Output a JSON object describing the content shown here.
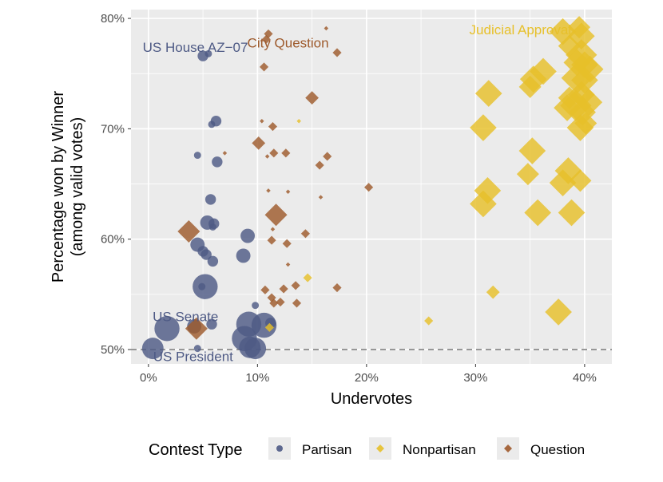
{
  "chart_data": {
    "type": "scatter",
    "xlabel": "Undervotes",
    "ylabel": [
      "Percentage won by Winner",
      "(among valid votes)"
    ],
    "xlim": [
      -0.016,
      0.425
    ],
    "ylim": [
      0.487,
      0.808
    ],
    "x_ticks": [
      0,
      0.1,
      0.2,
      0.3,
      0.4
    ],
    "x_tick_labels": [
      "0%",
      "10%",
      "20%",
      "30%",
      "40%"
    ],
    "y_ticks": [
      0.5,
      0.6,
      0.7,
      0.8
    ],
    "y_tick_labels": [
      "50%",
      "60%",
      "70%",
      "80%"
    ],
    "reference_line": {
      "y": 0.5,
      "style": "dashed"
    },
    "grid": true,
    "legend": {
      "title": "Contest Type",
      "position": "bottom",
      "entries": [
        {
          "label": "Partisan",
          "shape": "circle",
          "color": "#4e5a85"
        },
        {
          "label": "Nonpartisan",
          "shape": "diamond",
          "color": "#e7c02a"
        },
        {
          "label": "Question",
          "shape": "diamond",
          "color": "#9e5a2c"
        }
      ]
    },
    "annotations": [
      {
        "text": "US House AZ−07",
        "x": 0.043,
        "y": 0.774,
        "color": "#4e5a85"
      },
      {
        "text": "City Question",
        "x": 0.128,
        "y": 0.778,
        "color": "#9e5a2c"
      },
      {
        "text": "Judicial Approval",
        "x": 0.341,
        "y": 0.79,
        "color": "#e7c02a"
      },
      {
        "text": "US Senate",
        "x": 0.034,
        "y": 0.53,
        "color": "#4e5a85"
      },
      {
        "text": "US President",
        "x": 0.041,
        "y": 0.494,
        "color": "#4e5a85"
      }
    ],
    "series": [
      {
        "name": "Partisan",
        "shape": "circle",
        "points": [
          [
            0.05,
            0.766,
            3
          ],
          [
            0.055,
            0.768,
            2
          ],
          [
            0.058,
            0.704,
            2
          ],
          [
            0.062,
            0.707,
            3
          ],
          [
            0.045,
            0.676,
            2
          ],
          [
            0.063,
            0.67,
            3
          ],
          [
            0.057,
            0.636,
            3
          ],
          [
            0.054,
            0.615,
            4
          ],
          [
            0.06,
            0.614,
            3
          ],
          [
            0.059,
            0.611,
            2
          ],
          [
            0.091,
            0.603,
            4
          ],
          [
            0.045,
            0.595,
            4
          ],
          [
            0.05,
            0.589,
            3
          ],
          [
            0.053,
            0.586,
            3
          ],
          [
            0.087,
            0.585,
            4
          ],
          [
            0.059,
            0.58,
            3
          ],
          [
            0.052,
            0.557,
            7
          ],
          [
            0.049,
            0.557,
            2
          ],
          [
            0.098,
            0.54,
            2
          ],
          [
            0.042,
            0.521,
            4
          ],
          [
            0.058,
            0.523,
            3
          ],
          [
            0.017,
            0.519,
            7
          ],
          [
            0.092,
            0.523,
            7
          ],
          [
            0.106,
            0.522,
            7
          ],
          [
            0.112,
            0.524,
            3
          ],
          [
            0.088,
            0.51,
            7
          ],
          [
            0.093,
            0.502,
            6
          ],
          [
            0.098,
            0.501,
            6
          ],
          [
            0.004,
            0.501,
            6
          ],
          [
            0.045,
            0.501,
            2
          ]
        ]
      },
      {
        "name": "Nonpartisan",
        "shape": "diamond",
        "points": [
          [
            0.395,
            0.792,
            5
          ],
          [
            0.38,
            0.788,
            6
          ],
          [
            0.397,
            0.784,
            6
          ],
          [
            0.386,
            0.775,
            5
          ],
          [
            0.397,
            0.767,
            7
          ],
          [
            0.393,
            0.76,
            6
          ],
          [
            0.4,
            0.758,
            6
          ],
          [
            0.405,
            0.754,
            6
          ],
          [
            0.362,
            0.752,
            6
          ],
          [
            0.353,
            0.745,
            6
          ],
          [
            0.393,
            0.746,
            7
          ],
          [
            0.4,
            0.744,
            6
          ],
          [
            0.35,
            0.738,
            5
          ],
          [
            0.312,
            0.732,
            6
          ],
          [
            0.397,
            0.731,
            6
          ],
          [
            0.386,
            0.728,
            5
          ],
          [
            0.404,
            0.724,
            6
          ],
          [
            0.384,
            0.719,
            6
          ],
          [
            0.392,
            0.721,
            7
          ],
          [
            0.398,
            0.715,
            6
          ],
          [
            0.401,
            0.705,
            5
          ],
          [
            0.307,
            0.701,
            6
          ],
          [
            0.396,
            0.701,
            6
          ],
          [
            0.352,
            0.68,
            6
          ],
          [
            0.385,
            0.662,
            6
          ],
          [
            0.348,
            0.659,
            5
          ],
          [
            0.38,
            0.651,
            6
          ],
          [
            0.396,
            0.653,
            5
          ],
          [
            0.311,
            0.644,
            6
          ],
          [
            0.307,
            0.632,
            6
          ],
          [
            0.357,
            0.624,
            6
          ],
          [
            0.388,
            0.624,
            6
          ],
          [
            0.138,
            0.707,
            1
          ],
          [
            0.146,
            0.565,
            2
          ],
          [
            0.316,
            0.552,
            3
          ],
          [
            0.376,
            0.534,
            6
          ],
          [
            0.257,
            0.526,
            2
          ],
          [
            0.111,
            0.52,
            2
          ]
        ]
      },
      {
        "name": "Question",
        "shape": "diamond",
        "points": [
          [
            0.11,
            0.786,
            2
          ],
          [
            0.108,
            0.781,
            2
          ],
          [
            0.163,
            0.791,
            1
          ],
          [
            0.173,
            0.769,
            2
          ],
          [
            0.106,
            0.756,
            2
          ],
          [
            0.15,
            0.728,
            3
          ],
          [
            0.104,
            0.707,
            1
          ],
          [
            0.114,
            0.702,
            2
          ],
          [
            0.101,
            0.687,
            3
          ],
          [
            0.07,
            0.678,
            1
          ],
          [
            0.115,
            0.678,
            2
          ],
          [
            0.126,
            0.678,
            2
          ],
          [
            0.164,
            0.675,
            2
          ],
          [
            0.109,
            0.675,
            1
          ],
          [
            0.157,
            0.667,
            2
          ],
          [
            0.202,
            0.647,
            2
          ],
          [
            0.11,
            0.644,
            1
          ],
          [
            0.128,
            0.643,
            1
          ],
          [
            0.158,
            0.638,
            1
          ],
          [
            0.117,
            0.622,
            5
          ],
          [
            0.037,
            0.607,
            5
          ],
          [
            0.114,
            0.609,
            1
          ],
          [
            0.144,
            0.605,
            2
          ],
          [
            0.113,
            0.599,
            2
          ],
          [
            0.127,
            0.596,
            2
          ],
          [
            0.128,
            0.577,
            1
          ],
          [
            0.135,
            0.558,
            2
          ],
          [
            0.124,
            0.555,
            2
          ],
          [
            0.107,
            0.554,
            2
          ],
          [
            0.173,
            0.556,
            2
          ],
          [
            0.113,
            0.547,
            2
          ],
          [
            0.121,
            0.543,
            2
          ],
          [
            0.115,
            0.542,
            2
          ],
          [
            0.136,
            0.542,
            2
          ],
          [
            0.044,
            0.519,
            5
          ]
        ]
      }
    ]
  }
}
